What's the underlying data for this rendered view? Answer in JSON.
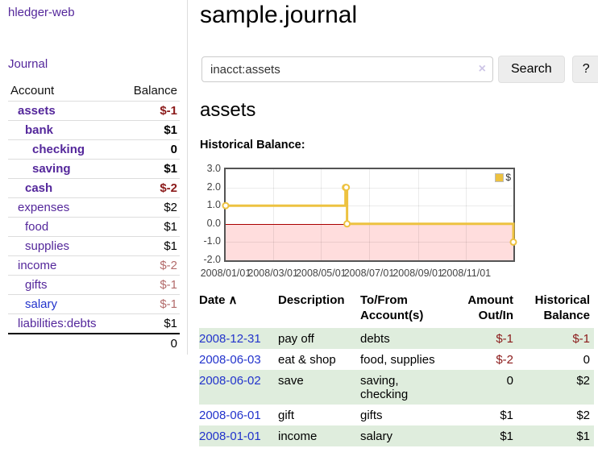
{
  "app": {
    "brand": "hledger-web",
    "nav_journal": "Journal"
  },
  "colors": {
    "link_visited": "#54279b",
    "link_unvisited": "#2233cc",
    "negative_strong": "#8b1a1a",
    "negative_soft": "#b36b6b",
    "row_green": "#dfeddd",
    "chart_line": "#edc240",
    "chart_negative_bg": "#ffdddd",
    "chart_zero_line": "#aa0000"
  },
  "sidebar": {
    "headers": {
      "account": "Account",
      "balance": "Balance"
    },
    "accounts": [
      {
        "name": "assets",
        "depth": 1,
        "balance": "$-1",
        "bold": true,
        "neg": "strong"
      },
      {
        "name": "bank",
        "depth": 2,
        "balance": "$1",
        "bold": true,
        "neg": "none"
      },
      {
        "name": "checking",
        "depth": 3,
        "balance": "0",
        "bold": true,
        "neg": "none"
      },
      {
        "name": "saving",
        "depth": 3,
        "balance": "$1",
        "bold": true,
        "neg": "none"
      },
      {
        "name": "cash",
        "depth": 2,
        "balance": "$-2",
        "bold": true,
        "neg": "strong"
      },
      {
        "name": "expenses",
        "depth": 1,
        "balance": "$2",
        "bold": false,
        "neg": "none"
      },
      {
        "name": "food",
        "depth": 2,
        "balance": "$1",
        "bold": false,
        "neg": "none"
      },
      {
        "name": "supplies",
        "depth": 2,
        "balance": "$1",
        "bold": false,
        "neg": "none"
      },
      {
        "name": "income",
        "depth": 1,
        "balance": "$-2",
        "bold": false,
        "neg": "soft"
      },
      {
        "name": "gifts",
        "depth": 2,
        "balance": "$-1",
        "bold": false,
        "neg": "soft"
      },
      {
        "name": "salary",
        "depth": 2,
        "balance": "$-1",
        "bold": false,
        "neg": "soft",
        "unvisited": true
      },
      {
        "name": "liabilities:debts",
        "depth": 1,
        "balance": "$1",
        "bold": false,
        "neg": "none"
      }
    ],
    "total": "0"
  },
  "header": {
    "title": "sample.journal"
  },
  "search": {
    "value": "inacct:assets",
    "clear_icon": "×",
    "button_label": "Search",
    "help_label": "?"
  },
  "account_page": {
    "heading": "assets",
    "chart_title": "Historical Balance:"
  },
  "chart_data": {
    "type": "line",
    "step": true,
    "title": "Historical Balance:",
    "legend": "$",
    "legend_position": "top-right",
    "grid": true,
    "x_range": [
      "2008-01-01",
      "2008-12-31"
    ],
    "ylim": [
      -2.0,
      3.0
    ],
    "y_ticks": [
      3.0,
      2.0,
      1.0,
      0.0,
      -1.0,
      -2.0
    ],
    "x_ticks": [
      "2008/01/01",
      "2008/03/01",
      "2008/05/01",
      "2008/07/01",
      "2008/09/01",
      "2008/11/01"
    ],
    "series": [
      {
        "name": "$",
        "points": [
          {
            "x": "2008-01-01",
            "y": 1
          },
          {
            "x": "2008-06-01",
            "y": 2
          },
          {
            "x": "2008-06-02",
            "y": 2
          },
          {
            "x": "2008-06-03",
            "y": 0
          },
          {
            "x": "2008-12-31",
            "y": -1
          }
        ]
      }
    ]
  },
  "register": {
    "sort_caret": "∧",
    "headers": {
      "date": "Date",
      "description": "Description",
      "accounts": "To/From Account(s)",
      "amount": "Amount Out/In",
      "balance": "Historical Balance"
    },
    "rows": [
      {
        "date": "2008-12-31",
        "description": "pay off",
        "accounts": "debts",
        "amount": "$-1",
        "balance": "$-1",
        "amount_neg": true,
        "balance_neg": true
      },
      {
        "date": "2008-06-03",
        "description": "eat & shop",
        "accounts": "food, supplies",
        "amount": "$-2",
        "balance": "0",
        "amount_neg": true,
        "balance_neg": false
      },
      {
        "date": "2008-06-02",
        "description": "save",
        "accounts": "saving, checking",
        "amount": "0",
        "balance": "$2",
        "amount_neg": false,
        "balance_neg": false
      },
      {
        "date": "2008-06-01",
        "description": "gift",
        "accounts": "gifts",
        "amount": "$1",
        "balance": "$2",
        "amount_neg": false,
        "balance_neg": false
      },
      {
        "date": "2008-01-01",
        "description": "income",
        "accounts": "salary",
        "amount": "$1",
        "balance": "$1",
        "amount_neg": false,
        "balance_neg": false
      }
    ]
  }
}
